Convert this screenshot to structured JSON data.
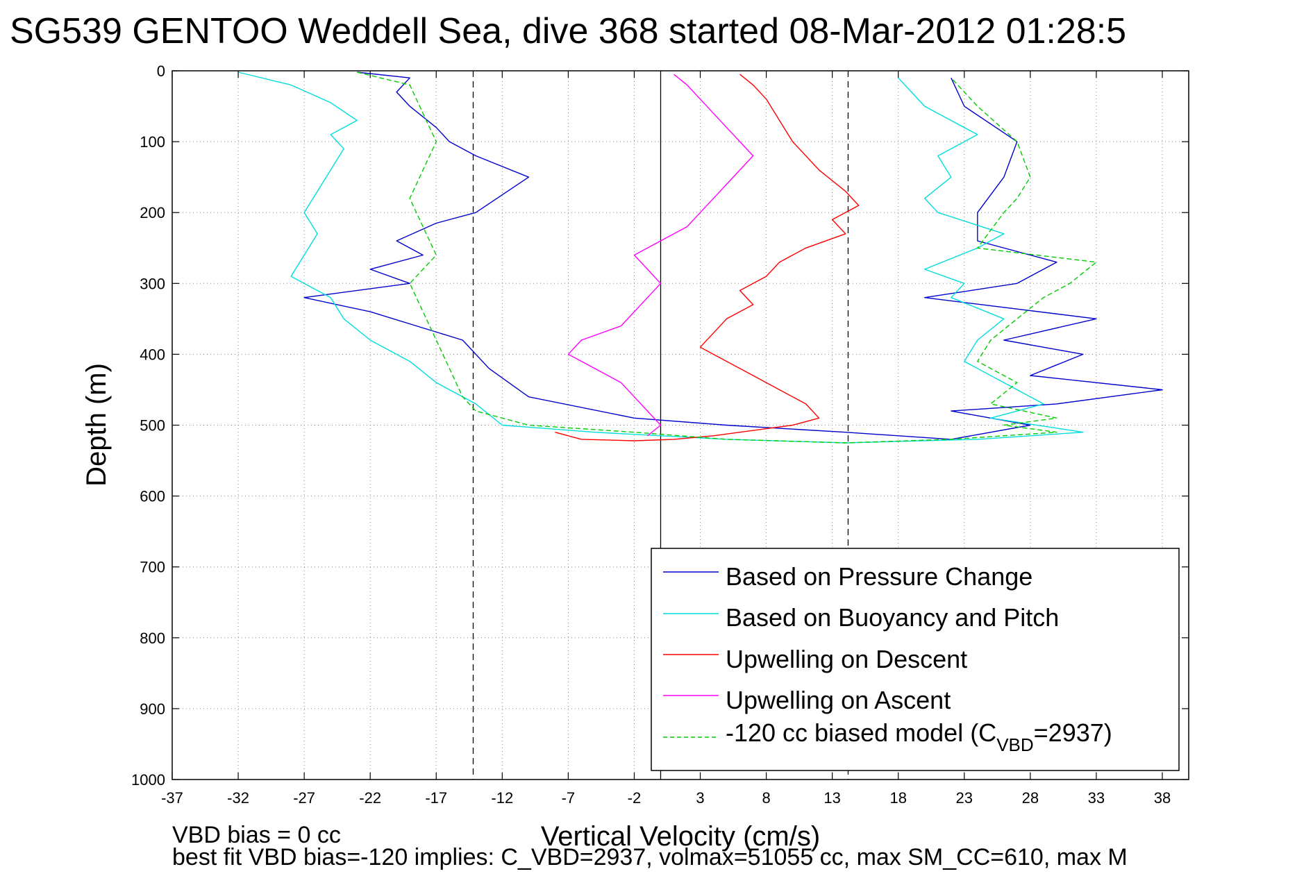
{
  "chart_data": {
    "type": "line",
    "title": "SG539 GENTOO Weddell Sea, dive 368 started 08-Mar-2012 01:28:5",
    "xlabel": "Vertical Velocity (cm/s)",
    "ylabel": "Depth (m)",
    "xlim": [
      -37,
      40
    ],
    "ylim": [
      0,
      1000
    ],
    "y_reversed": true,
    "grid": true,
    "x_ticks": [
      "-37",
      "-32",
      "-27",
      "-22",
      "-17",
      "-12",
      "-7",
      "-2",
      "3",
      "8",
      "13",
      "18",
      "23",
      "28",
      "33",
      "38"
    ],
    "y_ticks": [
      "0",
      "100",
      "200",
      "300",
      "400",
      "500",
      "600",
      "700",
      "800",
      "900",
      "1000"
    ],
    "legend_position": "bottom-right",
    "reference_lines": [
      {
        "x": -14.2,
        "style": "dashed"
      },
      {
        "x": 0,
        "style": "solid"
      },
      {
        "x": 14.2,
        "style": "dashed"
      }
    ],
    "series": [
      {
        "name": "Based on Pressure Change",
        "color": "#0000cc",
        "x": [
          -23,
          -19,
          -20,
          -19,
          -17,
          -16,
          -14,
          -10,
          -12,
          -14,
          -17,
          -20,
          -18,
          -22,
          -19,
          -27,
          -22,
          -15,
          -13,
          -10,
          -2,
          5,
          14,
          22,
          28,
          22,
          30,
          38,
          28,
          32,
          26,
          33,
          20,
          27,
          30,
          24,
          24,
          26,
          27,
          23,
          22
        ],
        "y": [
          2,
          10,
          30,
          50,
          80,
          100,
          120,
          150,
          175,
          200,
          215,
          240,
          260,
          280,
          300,
          320,
          340,
          380,
          420,
          460,
          490,
          500,
          510,
          520,
          500,
          480,
          470,
          450,
          430,
          400,
          380,
          350,
          320,
          300,
          270,
          240,
          200,
          150,
          100,
          50,
          10
        ]
      },
      {
        "name": "Based on Buoyancy and Pitch",
        "color": "#00dddd",
        "x": [
          -32,
          -28,
          -25,
          -23,
          -25,
          -24,
          -25,
          -26,
          -27,
          -26,
          -27,
          -28,
          -25,
          -24,
          -22,
          -19,
          -17,
          -14,
          -12,
          -5,
          5,
          14,
          24,
          32,
          25,
          29,
          26,
          23,
          24,
          26,
          22,
          23,
          20,
          24,
          26,
          21,
          20,
          22,
          21,
          24,
          20,
          18
        ],
        "y": [
          2,
          20,
          45,
          70,
          90,
          110,
          140,
          170,
          200,
          230,
          260,
          290,
          320,
          350,
          380,
          410,
          440,
          470,
          500,
          510,
          520,
          525,
          520,
          510,
          490,
          470,
          440,
          410,
          380,
          350,
          320,
          300,
          280,
          250,
          230,
          200,
          180,
          150,
          120,
          90,
          50,
          10
        ]
      },
      {
        "name": "Upwelling on Descent",
        "color": "#ff0000",
        "x": [
          6,
          7,
          8,
          9,
          10,
          12,
          14,
          15,
          13,
          14,
          11,
          9,
          8,
          6,
          7,
          5,
          4,
          3,
          5,
          7,
          9,
          11,
          12,
          10,
          8,
          6,
          4,
          1,
          -2,
          -6,
          -7,
          -8
        ],
        "y": [
          5,
          20,
          40,
          70,
          100,
          140,
          170,
          190,
          210,
          230,
          250,
          270,
          290,
          310,
          330,
          350,
          370,
          390,
          410,
          430,
          450,
          470,
          490,
          500,
          505,
          510,
          515,
          520,
          522,
          520,
          515,
          510
        ]
      },
      {
        "name": "Upwelling on Ascent",
        "color": "#ff00ff",
        "x": [
          1,
          2,
          3,
          4,
          5,
          6,
          7,
          6,
          5,
          4,
          3,
          2,
          0,
          -2,
          -1,
          0,
          -1,
          -2,
          -3,
          -6,
          -7,
          -5,
          -3,
          -2,
          -1,
          0,
          -1
        ],
        "y": [
          5,
          20,
          40,
          60,
          80,
          100,
          120,
          140,
          160,
          180,
          200,
          220,
          240,
          260,
          280,
          300,
          320,
          340,
          360,
          380,
          400,
          420,
          440,
          460,
          480,
          500,
          515
        ]
      },
      {
        "name": "-120 cc biased model (C_VBD=2937)",
        "color": "#00cc00",
        "dashed": true,
        "x": [
          -23,
          -19,
          -18,
          -17,
          -18,
          -19,
          -18,
          -17,
          -19,
          -18,
          -17,
          -16,
          -15,
          -14,
          -10,
          -2,
          5,
          14,
          22,
          30,
          26,
          30,
          25,
          27,
          24,
          25,
          27,
          29,
          31,
          33,
          24,
          26,
          27,
          28,
          27,
          24,
          22
        ],
        "y": [
          2,
          20,
          60,
          100,
          140,
          180,
          220,
          260,
          300,
          340,
          380,
          420,
          460,
          480,
          500,
          510,
          520,
          525,
          520,
          510,
          500,
          490,
          470,
          440,
          410,
          380,
          350,
          320,
          300,
          270,
          250,
          200,
          180,
          150,
          100,
          50,
          10
        ]
      }
    ],
    "legend_labels": {
      "pressure": "Based on Pressure Change",
      "buoyancy": "Based on Buoyancy and Pitch",
      "descent": "Upwelling on Descent",
      "ascent": "Upwelling on Ascent",
      "model_pre": "-120 cc biased model (C",
      "model_sub": "VBD",
      "model_post": "=2937)"
    },
    "footnotes": {
      "bias": "VBD bias = 0 cc",
      "fit": "best fit VBD bias=-120 implies: C_VBD=2937, volmax=51055 cc, max SM_CC=610, max M"
    }
  }
}
